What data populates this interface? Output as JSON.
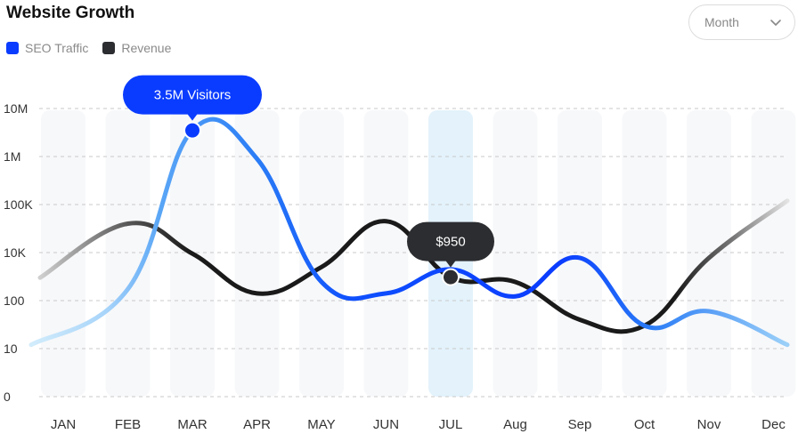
{
  "header": {
    "title": "Website Growth"
  },
  "filter": {
    "selected": "Month"
  },
  "colors": {
    "seo": "#0a3cff",
    "seo_light": "#bfe3fb",
    "revenue": "#111111",
    "revenue_tooltip": "#2b2d30",
    "highlight": "#e3f2fb"
  },
  "chart_data": {
    "type": "line",
    "title": "Website Growth",
    "categories": [
      "JAN",
      "FEB",
      "MAR",
      "APR",
      "MAY",
      "JUN",
      "JUL",
      "Aug",
      "Sep",
      "Oct",
      "Nov",
      "Dec"
    ],
    "y_tick_labels": [
      "0",
      "10",
      "100",
      "10K",
      "100K",
      "1M",
      "10M"
    ],
    "y_scale": "log",
    "grid": true,
    "legend_position": "top-left",
    "highlighted_category": "JUL",
    "series": [
      {
        "name": "SEO Traffic",
        "color": "#0a3cff",
        "values": [
          12,
          300,
          3500000,
          900000,
          600,
          200,
          2000,
          150,
          6000,
          30,
          60,
          12
        ]
      },
      {
        "name": "Revenue",
        "color": "#111111",
        "values": [
          900,
          40000,
          9000,
          200,
          2500,
          45000,
          950,
          600,
          40,
          30,
          6000,
          120000
        ]
      }
    ],
    "annotations": [
      {
        "series": "SEO Traffic",
        "x": "MAR",
        "label": "3.5M Visitors"
      },
      {
        "series": "Revenue",
        "x": "JUL",
        "label": "$950"
      }
    ]
  }
}
